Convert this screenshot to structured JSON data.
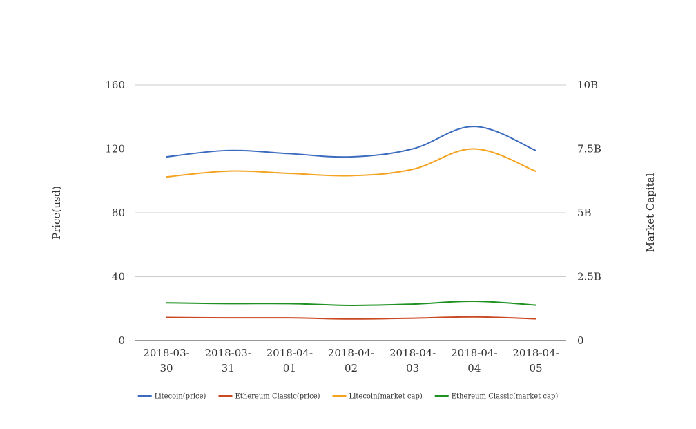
{
  "chart_data": {
    "type": "line",
    "title": "",
    "x": [
      "2018-03-30",
      "2018-03-31",
      "2018-04-01",
      "2018-04-02",
      "2018-04-03",
      "2018-04-04",
      "2018-04-05"
    ],
    "x_tick_labels": [
      [
        "2018-03-",
        "30"
      ],
      [
        "2018-03-",
        "31"
      ],
      [
        "2018-04-",
        "01"
      ],
      [
        "2018-04-",
        "02"
      ],
      [
        "2018-04-",
        "03"
      ],
      [
        "2018-04-",
        "04"
      ],
      [
        "2018-04-",
        "05"
      ]
    ],
    "ylabel_left": "Price(usd)",
    "ylabel_right": "Market Capital",
    "ylim_left": [
      0,
      160
    ],
    "ylim_right": [
      0,
      10000000000
    ],
    "yticks_left": [
      "0",
      "40",
      "80",
      "120",
      "160"
    ],
    "yticks_right": [
      "0",
      "2.5B",
      "5B",
      "7.5B",
      "10B"
    ],
    "grid": true,
    "legend_position": "bottom",
    "series": [
      {
        "name": "Litecoin(price)",
        "axis": "left",
        "color": "#3b6bbf",
        "values": [
          115,
          119,
          117,
          115,
          120,
          134,
          119
        ]
      },
      {
        "name": "Ethereum Classic(price)",
        "axis": "left",
        "color": "#c94a22",
        "values": [
          14.5,
          14.2,
          14.2,
          13.5,
          14.0,
          14.8,
          13.6
        ]
      },
      {
        "name": "Litecoin(market cap)",
        "axis": "right",
        "color": "#f4a21f",
        "values": [
          6400000000,
          6630000000,
          6540000000,
          6450000000,
          6700000000,
          7500000000,
          6620000000
        ]
      },
      {
        "name": "Ethereum Classic(market cap)",
        "axis": "right",
        "color": "#1f9120",
        "values": [
          1480000000,
          1450000000,
          1450000000,
          1380000000,
          1430000000,
          1540000000,
          1390000000
        ]
      }
    ]
  }
}
